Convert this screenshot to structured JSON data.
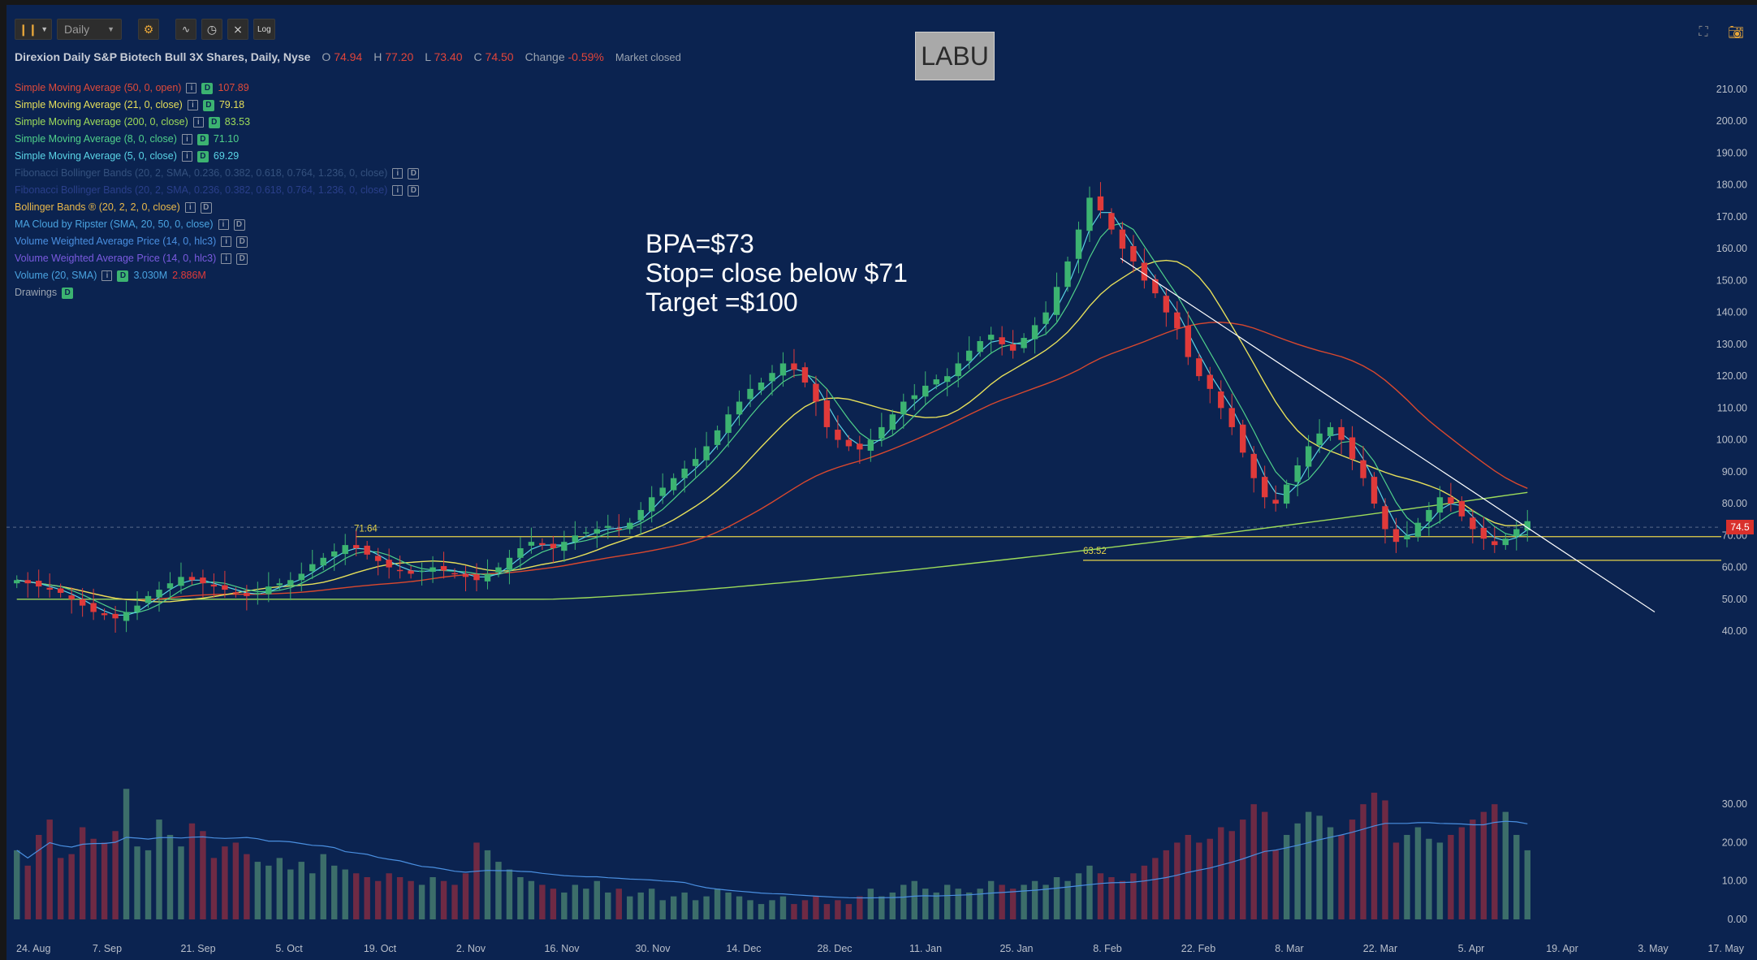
{
  "toolbar": {
    "chart_type_icon": "candlestick-icon",
    "timeframe": "Daily",
    "buttons": [
      "gear-icon",
      "indicator-icon",
      "clock-icon",
      "drawing-icon",
      "log-icon"
    ],
    "log_label": "Log",
    "right_icons": [
      "expand-icon",
      "camera-icon"
    ]
  },
  "header": {
    "title": "Direxion Daily S&P Biotech Bull 3X Shares, Daily, Nyse",
    "o_label": "O",
    "o": "74.94",
    "h_label": "H",
    "h": "77.20",
    "l_label": "L",
    "l": "73.40",
    "c_label": "C",
    "c": "74.50",
    "change_label": "Change",
    "change": "-0.59%",
    "status": "Market closed"
  },
  "symbol": "LABU",
  "annotation": {
    "line1": "BPA=$73",
    "line2": "Stop= close below $71",
    "line3": "Target =$100"
  },
  "studies": [
    {
      "label": "Simple Moving Average (50, 0, open)",
      "value": "107.89",
      "color": "#e04a3a",
      "active": true
    },
    {
      "label": "Simple Moving Average (21, 0, close)",
      "value": "79.18",
      "color": "#e6df5a",
      "active": true
    },
    {
      "label": "Simple Moving Average (200, 0, close)",
      "value": "83.53",
      "color": "#9ddb5a",
      "active": true
    },
    {
      "label": "Simple Moving Average (8, 0, close)",
      "value": "71.10",
      "color": "#4fd08a",
      "active": true
    },
    {
      "label": "Simple Moving Average (5, 0, close)",
      "value": "69.29",
      "color": "#5ad4e6",
      "active": true
    },
    {
      "label": "Fibonacci Bollinger Bands (20, 2, SMA, 0.236, 0.382, 0.618, 0.764, 1.236, 0, close)",
      "value": "",
      "color": "#34517e",
      "active": false
    },
    {
      "label": "Fibonacci Bollinger Bands (20, 2, SMA, 0.236, 0.382, 0.618, 0.764, 1.236, 0, close)",
      "value": "",
      "color": "#2a3f8a",
      "active": false
    },
    {
      "label": "Bollinger Bands ® (20, 2, 2, 0, close)",
      "value": "",
      "color": "#e9b84a",
      "active": false
    },
    {
      "label": "MA Cloud by Ripster (SMA, 20, 50, 0, close)",
      "value": "",
      "color": "#4aa3e0",
      "active": false
    },
    {
      "label": "Volume Weighted Average Price (14, 0, hlc3)",
      "value": "",
      "color": "#4a8fe0",
      "active": false
    },
    {
      "label": "Volume Weighted Average Price (14, 0, hlc3)",
      "value": "",
      "color": "#7a5ae0",
      "active": false
    },
    {
      "label": "Volume (20, SMA)",
      "value": "3.030M",
      "value2": "2.886M",
      "color": "#4aa3e0",
      "active": true
    }
  ],
  "drawings_label": "Drawings",
  "d_label": "D",
  "info_glyph": "i",
  "colors": {
    "background": "#0b2350",
    "up": "#3cb371",
    "down": "#e03a3a",
    "sma5": "#5ad4e6",
    "sma8": "#4fd08a",
    "sma21": "#e6df5a",
    "sma50": "#d9482e",
    "sma200": "#9ddb5a",
    "level": "#e6d34a",
    "trendline": "#ffffff"
  },
  "chart_data": {
    "type": "candlestick",
    "title": "LABU",
    "ylim": [
      0,
      215
    ],
    "price_ticks": [
      "210.00",
      "200.00",
      "190.00",
      "180.00",
      "170.00",
      "160.00",
      "150.00",
      "140.00",
      "130.00",
      "120.00",
      "110.00",
      "100.00",
      "90.00",
      "80.00",
      "70.00",
      "60.00",
      "50.00",
      "40.00"
    ],
    "volume_ticks": [
      "30.00",
      "20.00",
      "10.00",
      "0.00"
    ],
    "x_labels": [
      "24. Aug",
      "7. Sep",
      "21. Sep",
      "5. Oct",
      "19. Oct",
      "2. Nov",
      "16. Nov",
      "30. Nov",
      "14. Dec",
      "28. Dec",
      "11. Jan",
      "25. Jan",
      "8. Feb",
      "22. Feb",
      "8. Mar",
      "22. Mar",
      "5. Apr",
      "19. Apr",
      "3. May",
      "17. May"
    ],
    "last_price": "74.5",
    "levels": [
      {
        "label": "71.64",
        "value": 71.64
      },
      {
        "label": "63.52",
        "value": 63.52
      }
    ],
    "close_series_approx": [
      56,
      55,
      54,
      53,
      52,
      50,
      48,
      46,
      45,
      44,
      46,
      48,
      51,
      53,
      55,
      57,
      56,
      55,
      54,
      53,
      52,
      51,
      52,
      54,
      55,
      56,
      58,
      61,
      63,
      65,
      67,
      66,
      64,
      62,
      60,
      59,
      58,
      59,
      60,
      59,
      58,
      57,
      56,
      58,
      60,
      63,
      66,
      68,
      67,
      66,
      68,
      70,
      71,
      72,
      73,
      72,
      74,
      78,
      82,
      85,
      88,
      91,
      94,
      98,
      103,
      108,
      112,
      116,
      118,
      121,
      124,
      122,
      118,
      112,
      104,
      100,
      98,
      97,
      100,
      104,
      108,
      112,
      114,
      117,
      119,
      120,
      124,
      128,
      131,
      133,
      130,
      128,
      132,
      136,
      140,
      148,
      156,
      166,
      176,
      172,
      166,
      160,
      156,
      150,
      146,
      140,
      135,
      126,
      120,
      116,
      110,
      104,
      96,
      88,
      82,
      80,
      86,
      92,
      98,
      102,
      104,
      100,
      94,
      88,
      80,
      72,
      68,
      70,
      74,
      78,
      82,
      80,
      76,
      72,
      69,
      67,
      69,
      72,
      74.5
    ],
    "trendline": {
      "from": [
        168,
        "8. Feb"
      ],
      "to": [
        46,
        "3. May"
      ]
    },
    "volume_series_approx": [
      18,
      14,
      22,
      26,
      16,
      17,
      24,
      21,
      20,
      23,
      34,
      19,
      18,
      26,
      22,
      19,
      25,
      23,
      16,
      19,
      20,
      17,
      15,
      14,
      16,
      13,
      15,
      12,
      17,
      14,
      13,
      12,
      11,
      10,
      12,
      11,
      10,
      9,
      11,
      10,
      9,
      12,
      20,
      18,
      15,
      13,
      11,
      10,
      9,
      8,
      7,
      9,
      8,
      10,
      7,
      8,
      6,
      7,
      8,
      5,
      6,
      7,
      5,
      6,
      8,
      7,
      6,
      5,
      4,
      5,
      6,
      4,
      5,
      6,
      4,
      5,
      4,
      6,
      8,
      6,
      7,
      9,
      10,
      8,
      7,
      9,
      8,
      7,
      8,
      10,
      9,
      8,
      9,
      10,
      9,
      11,
      10,
      12,
      14,
      12,
      11,
      10,
      12,
      14,
      16,
      18,
      20,
      22,
      20,
      21,
      24,
      23,
      26,
      30,
      28,
      18,
      22,
      25,
      28,
      27,
      24,
      22,
      26,
      30,
      33,
      31,
      20,
      22,
      24,
      21,
      20,
      22,
      24,
      26,
      28,
      30,
      28,
      22,
      18
    ]
  }
}
